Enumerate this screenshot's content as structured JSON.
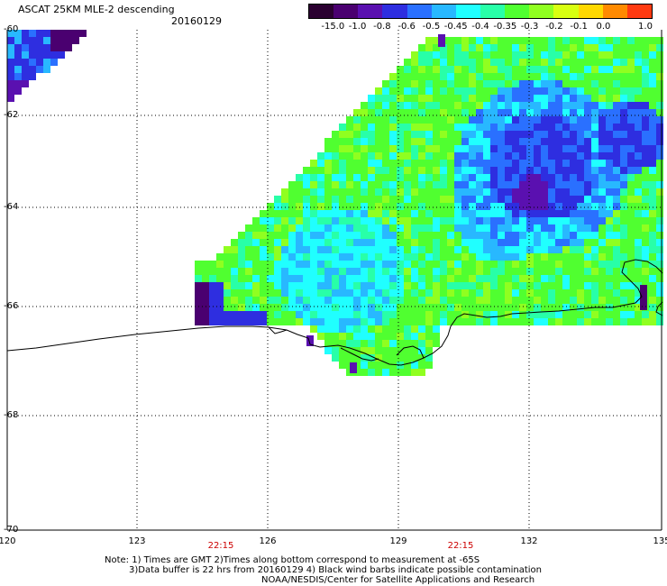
{
  "header": {
    "title": "ASCAT 25KM MLE-2 descending",
    "date": "20160129"
  },
  "colorbar": {
    "labels": [
      "-15.0",
      "-1.0",
      "-0.8",
      "-0.6",
      "-0.5",
      "-0.45",
      "-0.4",
      "-0.35",
      "-0.3",
      "-0.2",
      "-0.1",
      "0.0",
      "1.0"
    ],
    "colors": [
      "#2a0030",
      "#4a0070",
      "#5a10b0",
      "#2e2ee0",
      "#2a70ff",
      "#28b8ff",
      "#20ffff",
      "#28ffa8",
      "#50ff30",
      "#90ff20",
      "#d8ff10",
      "#ffd800",
      "#ff8a00",
      "#ff3a10"
    ]
  },
  "axes": {
    "lat_labels": [
      "-60",
      "-62",
      "-64",
      "-66",
      "-68",
      "-70"
    ],
    "lon_labels": [
      "120",
      "123",
      "126",
      "129",
      "132",
      "135"
    ],
    "time_labels": [
      "22:15",
      "22:15"
    ]
  },
  "notes": {
    "line1": "Note: 1) Times are GMT 2)Times along bottom correspond to measurement at -65S",
    "line2": "3)Data buffer is 22 hrs from 20160129 4) Black wind barbs indicate possible contamination",
    "line3": "NOAA/NESDIS/Center for Satellite Applications and Research"
  },
  "colors": {
    "grid": "#000000",
    "coastline": "#000000",
    "time_label": "#cc0000"
  }
}
